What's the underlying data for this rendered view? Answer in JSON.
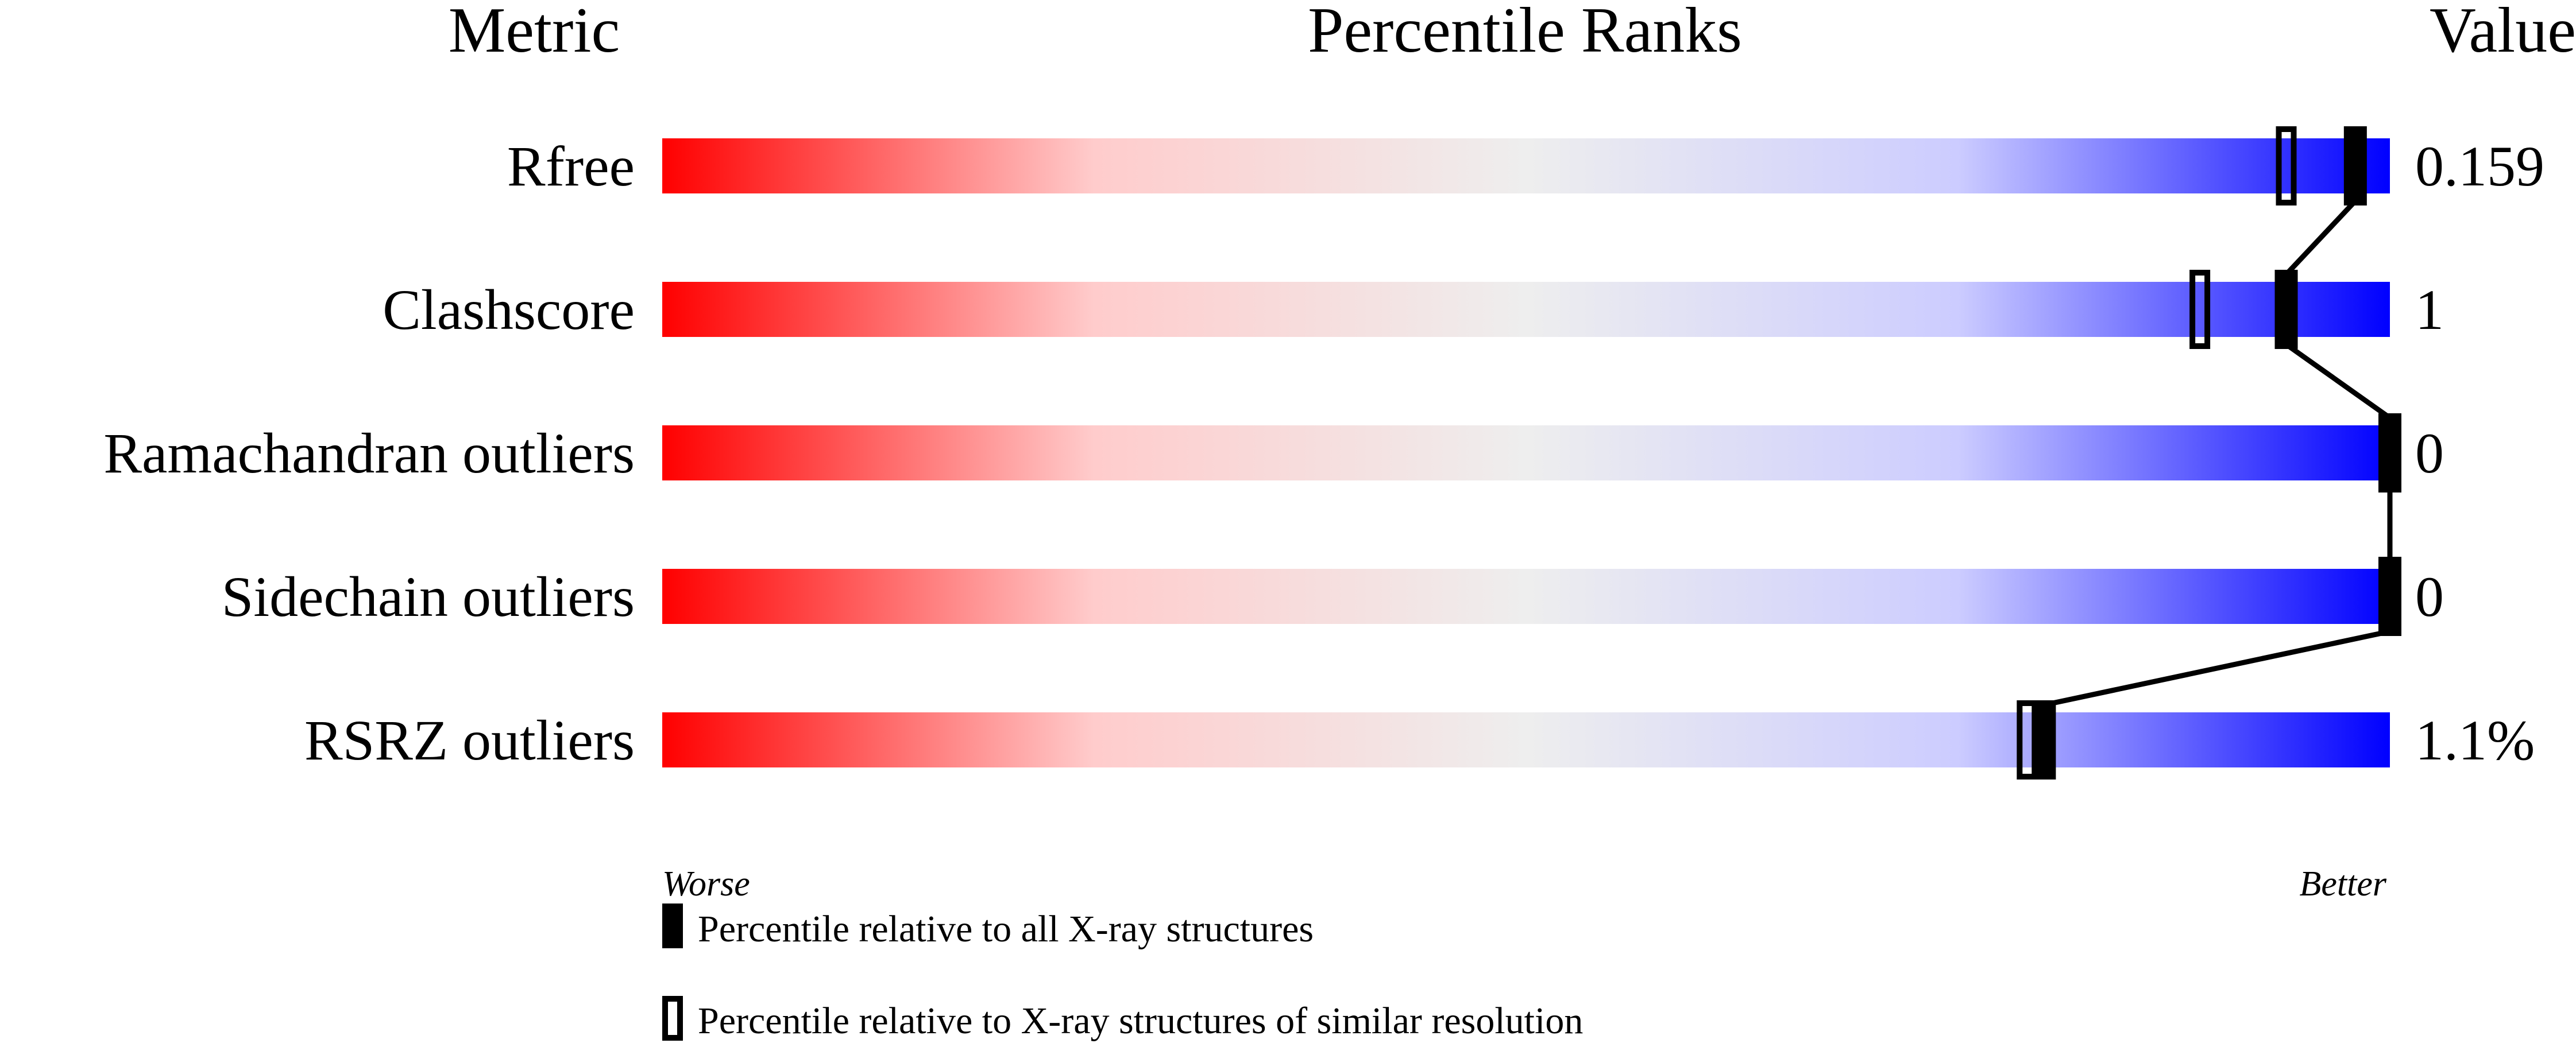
{
  "chart_data": {
    "type": "percentile-bars",
    "headers": {
      "metric": "Metric",
      "ranks": "Percentile Ranks",
      "value": "Value"
    },
    "xlim": [
      0,
      100
    ],
    "scale_labels": {
      "low": "Worse",
      "high": "Better"
    },
    "gradient_colors": [
      "#ff0000",
      "#ffcccc",
      "#eeeeee",
      "#ccccff",
      "#0000ff"
    ],
    "metrics": [
      {
        "name": "Rfree",
        "value": "0.159",
        "percentile_all": 98,
        "percentile_similar": 94
      },
      {
        "name": "Clashscore",
        "value": "1",
        "percentile_all": 94,
        "percentile_similar": 89
      },
      {
        "name": "Ramachandran outliers",
        "value": "0",
        "percentile_all": 100,
        "percentile_similar": null
      },
      {
        "name": "Sidechain outliers",
        "value": "0",
        "percentile_all": 100,
        "percentile_similar": null
      },
      {
        "name": "RSRZ outliers",
        "value": "1.1%",
        "percentile_all": 80,
        "percentile_similar": 79
      }
    ],
    "legend": [
      {
        "marker": "filled",
        "label": "Percentile relative to all X-ray structures"
      },
      {
        "marker": "open",
        "label": "Percentile relative to X-ray structures of similar resolution"
      }
    ]
  }
}
